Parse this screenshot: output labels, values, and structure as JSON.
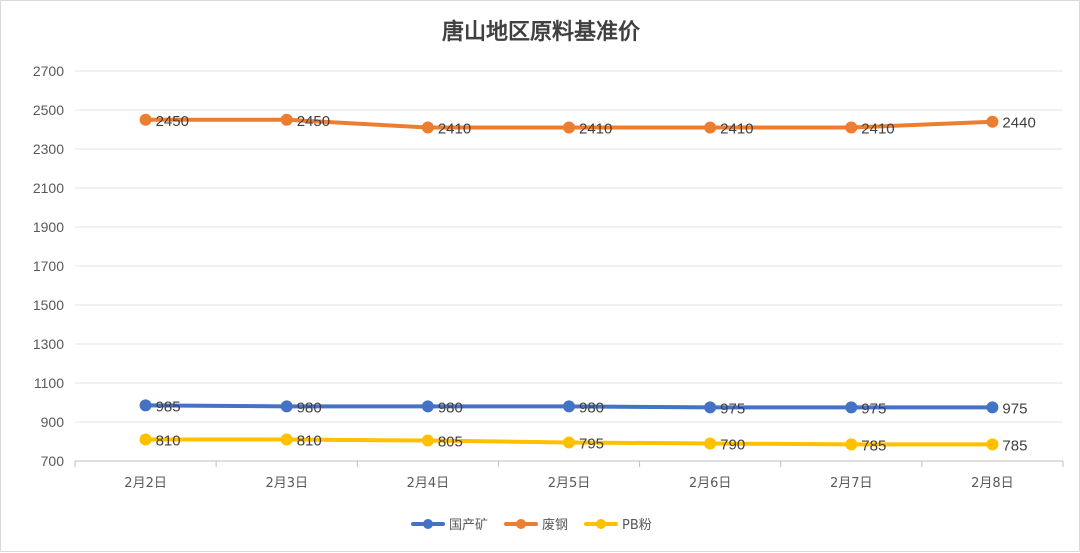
{
  "chart_data": {
    "type": "line",
    "title": "唐山地区原料基准价",
    "categories": [
      "2月2日",
      "2月3日",
      "2月4日",
      "2月5日",
      "2月6日",
      "2月7日",
      "2月8日"
    ],
    "ylim": [
      700,
      2700
    ],
    "yticks": [
      700,
      900,
      1100,
      1300,
      1500,
      1700,
      1900,
      2100,
      2300,
      2500,
      2700
    ],
    "grid": true,
    "legend": "bottom",
    "series": [
      {
        "name": "国产矿",
        "color": "#4472C4",
        "values": [
          985,
          980,
          980,
          980,
          975,
          975,
          975
        ]
      },
      {
        "name": "废钢",
        "color": "#ED7D31",
        "values": [
          2450,
          2450,
          2410,
          2410,
          2410,
          2410,
          2440
        ]
      },
      {
        "name": "PB粉",
        "color": "#FFC000",
        "values": [
          810,
          810,
          805,
          795,
          790,
          785,
          785
        ]
      }
    ]
  }
}
